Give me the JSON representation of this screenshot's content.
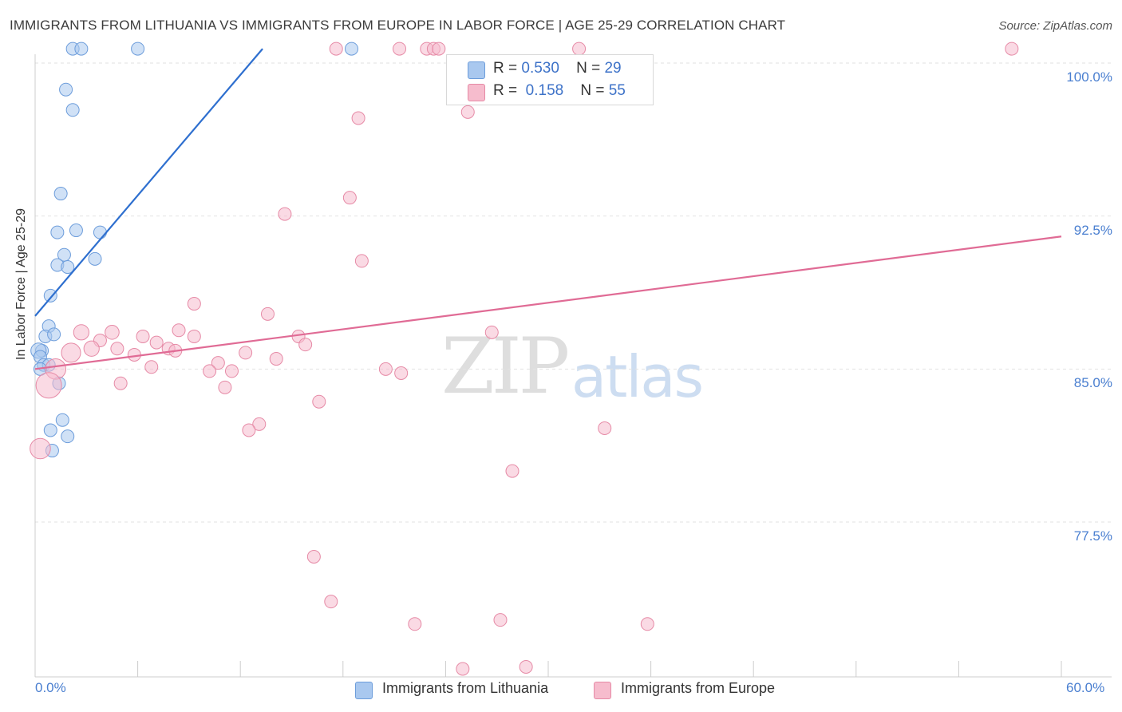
{
  "header": {
    "title": "IMMIGRANTS FROM LITHUANIA VS IMMIGRANTS FROM EUROPE IN LABOR FORCE | AGE 25-29 CORRELATION CHART",
    "source": "Source: ZipAtlas.com"
  },
  "watermark": {
    "zip": "ZIP",
    "atlas": "atlas"
  },
  "legend": {
    "series1": {
      "r_label": "R =",
      "r_value": "0.530",
      "n_label": "N =",
      "n_value": "29",
      "color": "#a9c8ef"
    },
    "series2": {
      "r_label": "R =",
      "r_value": "0.158",
      "n_label": "N =",
      "n_value": "55",
      "color": "#f6bccd"
    }
  },
  "bottom_legend": {
    "series1": "Immigrants from Lithuania",
    "series2": "Immigrants from Europe"
  },
  "chart_data": {
    "type": "scatter",
    "title": "IMMIGRANTS FROM LITHUANIA VS IMMIGRANTS FROM EUROPE IN LABOR FORCE | AGE 25-29 CORRELATION CHART",
    "xlabel": "",
    "ylabel": "In Labor Force | Age 25-29",
    "xlim": [
      0,
      60
    ],
    "ylim": [
      70.5,
      101.5
    ],
    "x_tick_labels": {
      "min": "0.0%",
      "max": "60.0%"
    },
    "y_ticks": [
      {
        "value": 100.0,
        "label": "100.0%"
      },
      {
        "value": 92.5,
        "label": "92.5%"
      },
      {
        "value": 85.0,
        "label": "85.0%"
      },
      {
        "value": 77.5,
        "label": "77.5%"
      }
    ],
    "grid": true,
    "series": [
      {
        "name": "Immigrants from Lithuania",
        "color": "#a9c8ef",
        "stroke": "#6d9ddb",
        "trend_color": "#2e6fcf",
        "trend": {
          "x0": 0.0,
          "y0": 87.6,
          "x1": 13.3,
          "y1": 100.7
        },
        "points": [
          {
            "x": 2.2,
            "y": 100.7,
            "s": 1
          },
          {
            "x": 2.7,
            "y": 100.7,
            "s": 1
          },
          {
            "x": 6.0,
            "y": 100.7,
            "s": 1
          },
          {
            "x": 1.8,
            "y": 98.7,
            "s": 1
          },
          {
            "x": 2.2,
            "y": 97.7,
            "s": 1
          },
          {
            "x": 1.5,
            "y": 93.6,
            "s": 1
          },
          {
            "x": 1.3,
            "y": 91.7,
            "s": 1
          },
          {
            "x": 2.4,
            "y": 91.8,
            "s": 1
          },
          {
            "x": 3.8,
            "y": 91.7,
            "s": 1
          },
          {
            "x": 1.7,
            "y": 90.6,
            "s": 1
          },
          {
            "x": 1.3,
            "y": 90.1,
            "s": 1
          },
          {
            "x": 1.9,
            "y": 90.0,
            "s": 1
          },
          {
            "x": 3.5,
            "y": 90.4,
            "s": 1
          },
          {
            "x": 0.9,
            "y": 88.6,
            "s": 1
          },
          {
            "x": 0.8,
            "y": 87.1,
            "s": 1
          },
          {
            "x": 0.6,
            "y": 86.6,
            "s": 1
          },
          {
            "x": 1.1,
            "y": 86.7,
            "s": 1
          },
          {
            "x": 0.4,
            "y": 85.9,
            "s": 1
          },
          {
            "x": 0.2,
            "y": 85.9,
            "s": 1.2
          },
          {
            "x": 0.3,
            "y": 85.6,
            "s": 1
          },
          {
            "x": 0.5,
            "y": 85.2,
            "s": 1
          },
          {
            "x": 0.8,
            "y": 85.2,
            "s": 1
          },
          {
            "x": 0.3,
            "y": 85.0,
            "s": 1
          },
          {
            "x": 1.4,
            "y": 84.3,
            "s": 1
          },
          {
            "x": 1.6,
            "y": 82.5,
            "s": 1
          },
          {
            "x": 0.9,
            "y": 82.0,
            "s": 1
          },
          {
            "x": 1.9,
            "y": 81.7,
            "s": 1
          },
          {
            "x": 1.0,
            "y": 81.0,
            "s": 1
          },
          {
            "x": 18.5,
            "y": 100.7,
            "s": 1
          }
        ]
      },
      {
        "name": "Immigrants from Europe",
        "color": "#f6bccd",
        "stroke": "#e68aa6",
        "trend_color": "#e06b95",
        "trend": {
          "x0": 0.0,
          "y0": 85.0,
          "x1": 60.0,
          "y1": 91.5
        },
        "points": [
          {
            "x": 17.6,
            "y": 100.7,
            "s": 1
          },
          {
            "x": 21.3,
            "y": 100.7,
            "s": 1
          },
          {
            "x": 22.9,
            "y": 100.7,
            "s": 1
          },
          {
            "x": 23.3,
            "y": 100.7,
            "s": 1
          },
          {
            "x": 23.6,
            "y": 100.7,
            "s": 1
          },
          {
            "x": 31.8,
            "y": 100.7,
            "s": 1
          },
          {
            "x": 57.1,
            "y": 100.7,
            "s": 1
          },
          {
            "x": 18.9,
            "y": 97.3,
            "s": 1
          },
          {
            "x": 25.3,
            "y": 97.6,
            "s": 1
          },
          {
            "x": 18.4,
            "y": 93.4,
            "s": 1
          },
          {
            "x": 14.6,
            "y": 92.6,
            "s": 1
          },
          {
            "x": 19.1,
            "y": 90.3,
            "s": 1
          },
          {
            "x": 9.3,
            "y": 88.2,
            "s": 1
          },
          {
            "x": 13.6,
            "y": 87.7,
            "s": 1
          },
          {
            "x": 2.7,
            "y": 86.8,
            "s": 1.2
          },
          {
            "x": 4.5,
            "y": 86.8,
            "s": 1.1
          },
          {
            "x": 3.8,
            "y": 86.4,
            "s": 1
          },
          {
            "x": 6.3,
            "y": 86.6,
            "s": 1
          },
          {
            "x": 8.4,
            "y": 86.9,
            "s": 1
          },
          {
            "x": 9.3,
            "y": 86.6,
            "s": 1
          },
          {
            "x": 15.4,
            "y": 86.6,
            "s": 1
          },
          {
            "x": 26.7,
            "y": 86.8,
            "s": 1
          },
          {
            "x": 7.1,
            "y": 86.3,
            "s": 1
          },
          {
            "x": 3.3,
            "y": 86.0,
            "s": 1.2
          },
          {
            "x": 4.8,
            "y": 86.0,
            "s": 1
          },
          {
            "x": 7.8,
            "y": 86.0,
            "s": 1
          },
          {
            "x": 8.2,
            "y": 85.9,
            "s": 1
          },
          {
            "x": 15.8,
            "y": 86.2,
            "s": 1
          },
          {
            "x": 2.1,
            "y": 85.8,
            "s": 1.5
          },
          {
            "x": 5.8,
            "y": 85.7,
            "s": 1
          },
          {
            "x": 12.3,
            "y": 85.8,
            "s": 1
          },
          {
            "x": 14.1,
            "y": 85.5,
            "s": 1
          },
          {
            "x": 10.7,
            "y": 85.3,
            "s": 1
          },
          {
            "x": 6.8,
            "y": 85.1,
            "s": 1
          },
          {
            "x": 10.2,
            "y": 84.9,
            "s": 1
          },
          {
            "x": 11.5,
            "y": 84.9,
            "s": 1
          },
          {
            "x": 20.5,
            "y": 85.0,
            "s": 1
          },
          {
            "x": 21.4,
            "y": 84.8,
            "s": 1
          },
          {
            "x": 1.2,
            "y": 85.0,
            "s": 1.6
          },
          {
            "x": 5.0,
            "y": 84.3,
            "s": 1
          },
          {
            "x": 11.1,
            "y": 84.1,
            "s": 1
          },
          {
            "x": 0.8,
            "y": 84.2,
            "s": 2.0
          },
          {
            "x": 16.6,
            "y": 83.4,
            "s": 1
          },
          {
            "x": 13.1,
            "y": 82.3,
            "s": 1
          },
          {
            "x": 12.5,
            "y": 82.0,
            "s": 1
          },
          {
            "x": 33.3,
            "y": 82.1,
            "s": 1
          },
          {
            "x": 0.3,
            "y": 81.1,
            "s": 1.6
          },
          {
            "x": 27.9,
            "y": 80.0,
            "s": 1
          },
          {
            "x": 16.3,
            "y": 75.8,
            "s": 1
          },
          {
            "x": 17.3,
            "y": 73.6,
            "s": 1
          },
          {
            "x": 27.2,
            "y": 72.7,
            "s": 1
          },
          {
            "x": 22.2,
            "y": 72.5,
            "s": 1
          },
          {
            "x": 35.8,
            "y": 72.5,
            "s": 1
          },
          {
            "x": 28.7,
            "y": 70.4,
            "s": 1
          },
          {
            "x": 25.0,
            "y": 70.3,
            "s": 1
          }
        ]
      }
    ]
  }
}
